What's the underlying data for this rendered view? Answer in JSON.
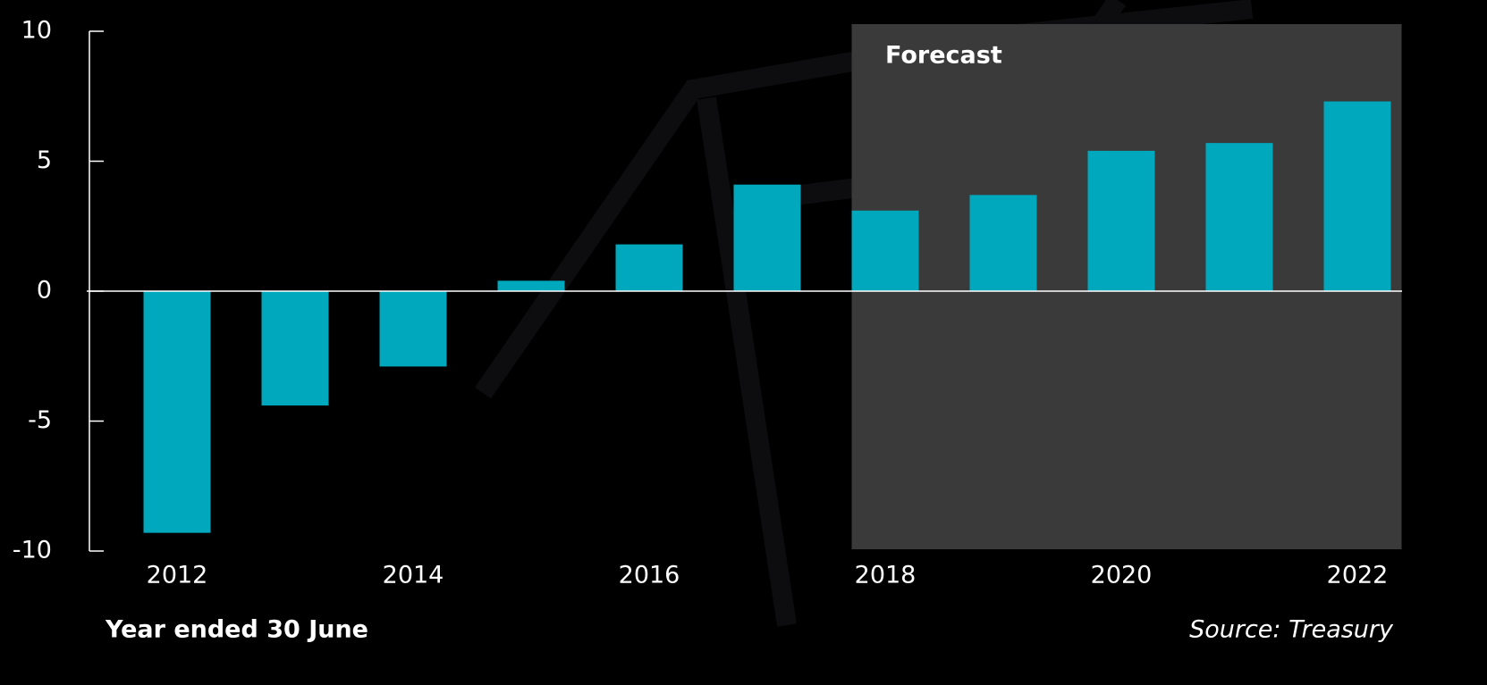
{
  "chart_data": {
    "type": "bar",
    "categories": [
      "2012",
      null,
      "2014",
      null,
      "2016",
      null,
      "2018",
      null,
      "2020",
      null,
      "2022"
    ],
    "values": [
      -9.3,
      -4.4,
      -2.9,
      0.4,
      1.8,
      4.1,
      3.1,
      3.7,
      5.4,
      5.7,
      7.3
    ],
    "color": "#00a8bd",
    "ylim": [
      -10,
      10
    ],
    "yticks": [
      -10,
      -5,
      0,
      5,
      10
    ],
    "annotation": "Forecast",
    "xlabel": "Year ended 30 June",
    "source": "Source: Treasury"
  }
}
